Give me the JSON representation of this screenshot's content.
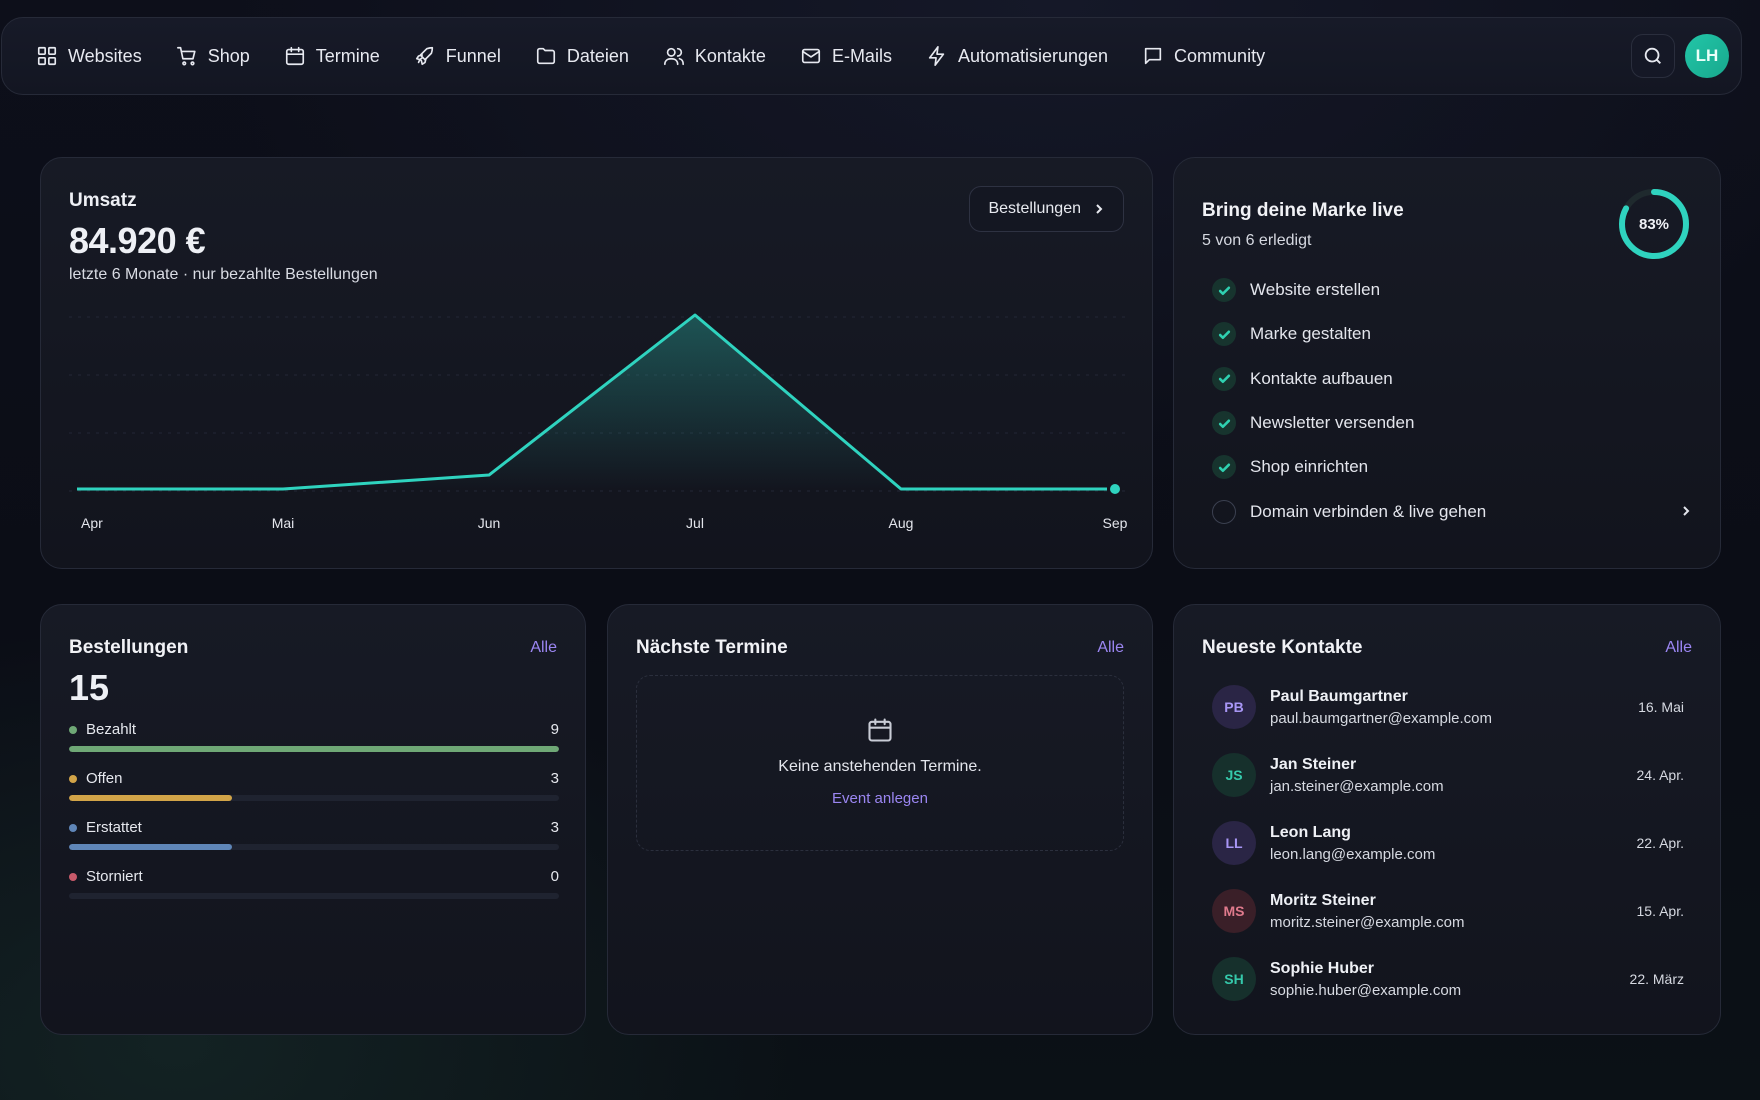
{
  "nav": {
    "items": [
      {
        "label": "Websites",
        "icon": "grid-icon"
      },
      {
        "label": "Shop",
        "icon": "cart-icon"
      },
      {
        "label": "Termine",
        "icon": "calendar-icon"
      },
      {
        "label": "Funnel",
        "icon": "rocket-icon"
      },
      {
        "label": "Dateien",
        "icon": "folder-icon"
      },
      {
        "label": "Kontakte",
        "icon": "users-icon"
      },
      {
        "label": "E-Mails",
        "icon": "mail-icon"
      },
      {
        "label": "Automatisierungen",
        "icon": "bolt-icon"
      },
      {
        "label": "Community",
        "icon": "chat-icon"
      }
    ],
    "avatar_initials": "LH"
  },
  "revenue": {
    "label": "Umsatz",
    "amount": "84.920 €",
    "subtitle": "letzte 6 Monate · nur bezahlte Bestellungen",
    "button_label": "Bestellungen"
  },
  "chart_data": {
    "type": "area",
    "categories": [
      "Apr",
      "Mai",
      "Jun",
      "Jul",
      "Aug",
      "Sep"
    ],
    "values": [
      0,
      0,
      6300,
      78620,
      0,
      0
    ],
    "line_color": "#2fd3bf",
    "grid": true
  },
  "onboarding": {
    "title": "Bring deine Marke live",
    "progress_text": "5 von 6 erledigt",
    "percent_label": "83%",
    "percent": 0.83,
    "tasks": [
      {
        "label": "Website erstellen",
        "done": true
      },
      {
        "label": "Marke gestalten",
        "done": true
      },
      {
        "label": "Kontakte aufbauen",
        "done": true
      },
      {
        "label": "Newsletter versenden",
        "done": true
      },
      {
        "label": "Shop einrichten",
        "done": true
      },
      {
        "label": "Domain verbinden & live gehen",
        "done": false
      }
    ]
  },
  "orders": {
    "title": "Bestellungen",
    "link": "Alle",
    "total": "15",
    "statuses": [
      {
        "label": "Bezahlt",
        "count": "9",
        "color": "#6fa876",
        "fraction": 1.0
      },
      {
        "label": "Offen",
        "count": "3",
        "color": "#d2a448",
        "fraction": 0.333
      },
      {
        "label": "Erstattet",
        "count": "3",
        "color": "#5f86b8",
        "fraction": 0.333
      },
      {
        "label": "Storniert",
        "count": "0",
        "color": "#c85a6a",
        "fraction": 0.0
      }
    ]
  },
  "appointments": {
    "title": "Nächste Termine",
    "link": "Alle",
    "empty_message": "Keine anstehenden Termine.",
    "cta": "Event anlegen"
  },
  "contacts": {
    "title": "Neueste Kontakte",
    "link": "Alle",
    "items": [
      {
        "initials": "PB",
        "name": "Paul Baumgartner",
        "email": "paul.baumgartner@example.com",
        "date": "16. Mai",
        "bg": "#2a2545",
        "fg": "#a896f5"
      },
      {
        "initials": "JS",
        "name": "Jan Steiner",
        "email": "jan.steiner@example.com",
        "date": "24. Apr.",
        "bg": "#16302c",
        "fg": "#35c9ab"
      },
      {
        "initials": "LL",
        "name": "Leon Lang",
        "email": "leon.lang@example.com",
        "date": "22. Apr.",
        "bg": "#2a2545",
        "fg": "#a896f5"
      },
      {
        "initials": "MS",
        "name": "Moritz Steiner",
        "email": "moritz.steiner@example.com",
        "date": "15. Apr.",
        "bg": "#3a1f28",
        "fg": "#e07a8c"
      },
      {
        "initials": "SH",
        "name": "Sophie Huber",
        "email": "sophie.huber@example.com",
        "date": "22. März",
        "bg": "#16302c",
        "fg": "#35c9ab"
      }
    ]
  }
}
